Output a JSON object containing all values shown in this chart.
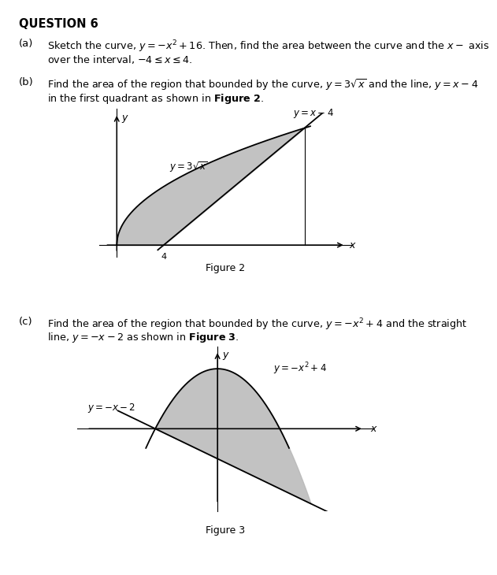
{
  "bg_color": "#ffffff",
  "shade_color": "#b8b8b8",
  "title": "QUESTION 6",
  "fig2_label": "Figure 2",
  "fig3_label": "Figure 3",
  "fig2_curve_label": "$y=3\\sqrt{x}$",
  "fig2_line_label": "$y=x-4$",
  "fig3_curve_label": "$y=-x^2+4$",
  "fig3_line_label": "$y=-x-2$",
  "part_a_label": "(a)",
  "part_b_label": "(b)",
  "part_c_label": "(c)",
  "part_a_line1": "Sketch the curve, $y=-x^2+16$. Then, find the area between the curve and the $x-$ axis",
  "part_a_line2": "over the interval, $-4\\leq x\\leq4$.",
  "part_b_line1": "Find the area of the region that bounded by the curve, $y=3\\sqrt{x}$ and the line, $y=x-4$",
  "part_b_line2": "in the first quadrant as shown in \\textbf{Figure 2}.",
  "part_c_line1": "Find the area of the region that bounded by the curve, $y=-x^2+4$ and the straight",
  "part_c_line2": "line, $y=-x-2$ as shown in \\textbf{Figure 3}."
}
